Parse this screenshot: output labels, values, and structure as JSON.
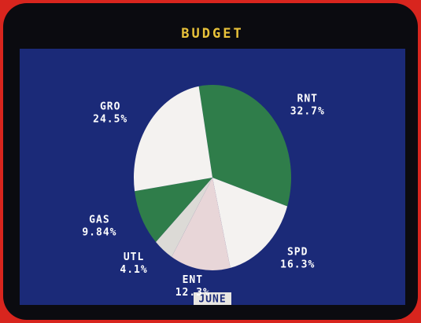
{
  "chart_data": {
    "type": "pie",
    "title": "BUDGET",
    "subtitle": "JUNE",
    "categories": [
      "RNT",
      "SPD",
      "ENT",
      "UTL",
      "GAS",
      "GRO"
    ],
    "values": [
      32.7,
      16.3,
      12.3,
      4.1,
      9.84,
      24.5
    ],
    "value_labels": [
      "32.7%",
      "16.3%",
      "12.3%",
      "4.1%",
      "9.84%",
      "24.5%"
    ],
    "colors": [
      "#2f7d4a",
      "#f4f2f0",
      "#e8d6d8",
      "#dcdad6",
      "#2f7d4a",
      "#f4f2f0"
    ]
  }
}
